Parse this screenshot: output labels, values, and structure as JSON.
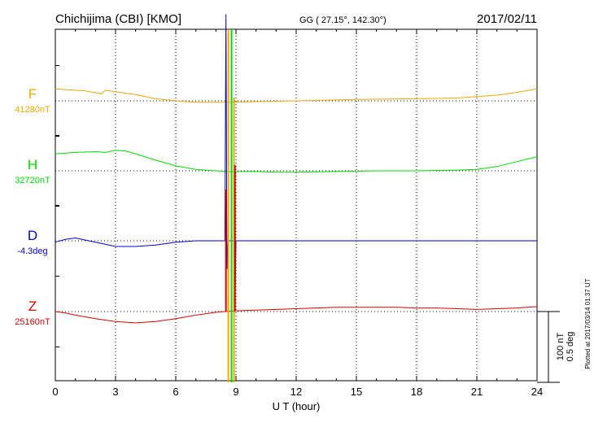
{
  "header": {
    "station": "Chichijima (CBI)  [KMO]",
    "coords": "GG ( 27.15°, 142.30°)",
    "date": "2017/02/11"
  },
  "footer": {
    "plotted": "Plotted at 2017/03/14 01:37 UT"
  },
  "scale": {
    "nt_label": "100 nT",
    "deg_label": "0.5 deg"
  },
  "colors": {
    "F": "#f0a800",
    "H": "#00dd00",
    "D": "#0000cc",
    "Z": "#dd0000"
  },
  "chart_data": {
    "type": "line",
    "xlabel": "U T (hour)",
    "xlim": [
      0,
      24
    ],
    "xticks": [
      0,
      3,
      6,
      9,
      12,
      15,
      18,
      21,
      24
    ],
    "grid": true,
    "series": [
      {
        "name": "F",
        "baseline_label": "41280nT",
        "color": "#f0a800",
        "values": [
          [
            0,
            17
          ],
          [
            0.5,
            16
          ],
          [
            1.5,
            14
          ],
          [
            2.3,
            10
          ],
          [
            2.5,
            15
          ],
          [
            3,
            13
          ],
          [
            4,
            9
          ],
          [
            5,
            3
          ],
          [
            6,
            0
          ],
          [
            7,
            -2
          ],
          [
            8.5,
            -2
          ],
          [
            9,
            -2
          ],
          [
            10,
            -1
          ],
          [
            12,
            0
          ],
          [
            15,
            2
          ],
          [
            18,
            3
          ],
          [
            20,
            4
          ],
          [
            21,
            6
          ],
          [
            22,
            8
          ],
          [
            23,
            12
          ],
          [
            24,
            17
          ]
        ]
      },
      {
        "name": "H",
        "baseline_label": "32720nT",
        "color": "#00dd00",
        "values": [
          [
            0,
            24
          ],
          [
            1,
            26
          ],
          [
            2,
            27
          ],
          [
            2.5,
            26
          ],
          [
            3,
            29
          ],
          [
            3.5,
            28
          ],
          [
            4,
            24
          ],
          [
            5,
            15
          ],
          [
            6,
            7
          ],
          [
            7,
            2
          ],
          [
            8,
            0
          ],
          [
            8.6,
            -1
          ],
          [
            9,
            -1
          ],
          [
            10,
            -1
          ],
          [
            11,
            -2
          ],
          [
            12,
            -2
          ],
          [
            14,
            -1
          ],
          [
            16,
            0
          ],
          [
            18,
            0
          ],
          [
            20,
            1
          ],
          [
            21,
            2
          ],
          [
            22,
            6
          ],
          [
            23,
            13
          ],
          [
            24,
            20
          ]
        ]
      },
      {
        "name": "D",
        "baseline_label": "-4.3deg",
        "color": "#0000cc",
        "values": [
          [
            0,
            -0.01
          ],
          [
            0.5,
            0.01
          ],
          [
            1,
            0.02
          ],
          [
            2,
            -0.01
          ],
          [
            3,
            -0.04
          ],
          [
            4,
            -0.04
          ],
          [
            5,
            -0.03
          ],
          [
            6,
            -0.01
          ],
          [
            7,
            0.0
          ],
          [
            8,
            0.0
          ],
          [
            8.45,
            0.0
          ],
          [
            8.5,
            1.6
          ],
          [
            8.55,
            -0.2
          ],
          [
            8.6,
            0.0
          ],
          [
            8.9,
            0.0
          ],
          [
            8.95,
            -0.4
          ],
          [
            9.0,
            0.0
          ],
          [
            10,
            0.0
          ],
          [
            12,
            0.0
          ],
          [
            15,
            0.0
          ],
          [
            18,
            0.0
          ],
          [
            21,
            0.0
          ],
          [
            24,
            0.0
          ]
        ]
      },
      {
        "name": "Z",
        "baseline_label": "25160nT",
        "color": "#dd0000",
        "values": [
          [
            0,
            0
          ],
          [
            0.5,
            -2
          ],
          [
            1,
            -5
          ],
          [
            2,
            -10
          ],
          [
            3,
            -14
          ],
          [
            4,
            -16
          ],
          [
            5,
            -14
          ],
          [
            6,
            -10
          ],
          [
            7,
            -5
          ],
          [
            8,
            -1
          ],
          [
            8.45,
            0
          ],
          [
            8.5,
            0
          ],
          [
            9,
            1
          ],
          [
            10,
            2
          ],
          [
            11,
            3
          ],
          [
            12,
            4
          ],
          [
            13,
            5
          ],
          [
            14,
            6
          ],
          [
            15,
            6
          ],
          [
            16,
            6
          ],
          [
            17,
            6
          ],
          [
            18,
            5
          ],
          [
            19,
            5
          ],
          [
            20,
            4
          ],
          [
            21,
            3
          ],
          [
            22,
            4
          ],
          [
            23,
            5
          ],
          [
            24,
            7
          ]
        ]
      }
    ],
    "spikes": [
      {
        "component": "F",
        "x": 8.62,
        "from": 0,
        "to": 100
      },
      {
        "component": "F",
        "x": 8.9,
        "from": 0,
        "to": 100
      },
      {
        "component": "H",
        "x": 8.78,
        "from": 0,
        "to": 100
      },
      {
        "component": "Z",
        "x": 8.5,
        "from": -0.2,
        "to": 1.5
      },
      {
        "component": "Z",
        "x": 8.95,
        "from": -0.2,
        "to": 1.8
      }
    ]
  }
}
